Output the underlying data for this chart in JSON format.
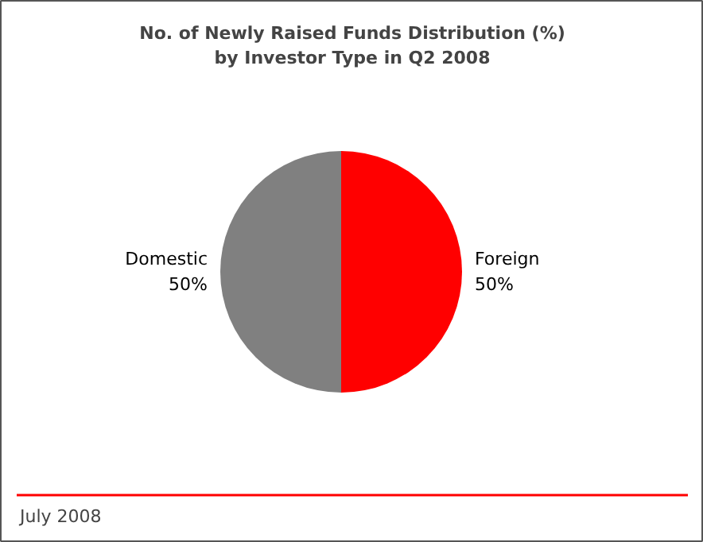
{
  "chart_data": {
    "type": "pie",
    "title": "No. of Newly Raised Funds Distribution (%)\nby Investor Type in Q2 2008",
    "categories": [
      "Foreign",
      "Domestic"
    ],
    "values": [
      50,
      50
    ],
    "colors": [
      "#ff0000",
      "#808080"
    ],
    "value_labels": [
      "50%",
      "50%"
    ],
    "annotations": [
      "July 2008"
    ]
  }
}
